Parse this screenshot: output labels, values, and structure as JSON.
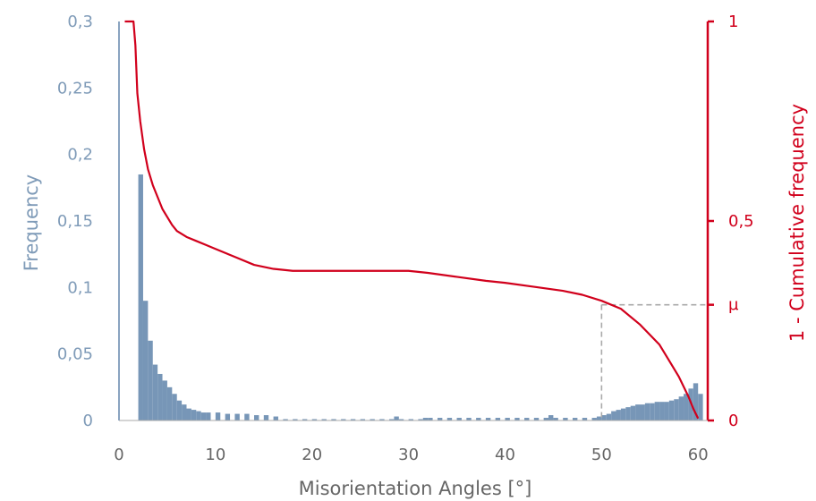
{
  "chart_data": {
    "type": "bar+line",
    "xlabel": "Misorientation Angles [°]",
    "ylabel_left": "Frequency",
    "ylabel_right": "1 - Cumulative frequency",
    "xlim": [
      0,
      61
    ],
    "ylim_left": [
      0,
      0.3
    ],
    "ylim_right": [
      0,
      1
    ],
    "x_ticks": [
      0,
      10,
      20,
      30,
      40,
      50,
      60
    ],
    "x_tick_labels": [
      "0",
      "10",
      "20",
      "30",
      "40",
      "50",
      "60"
    ],
    "y_left_ticks": [
      0,
      0.05,
      0.1,
      0.15,
      0.2,
      0.25,
      0.3
    ],
    "y_left_tick_labels": [
      "0",
      "0,05",
      "0,1",
      "0,15",
      "0,2",
      "0,25",
      "0,3"
    ],
    "y_right_ticks": [
      0,
      0.5,
      1
    ],
    "y_right_tick_labels": [
      "0",
      "0,5",
      "1"
    ],
    "mu_label": "μ",
    "mu_value": 0.29,
    "mu_x": 50,
    "colors": {
      "bars": "#7796b7",
      "line": "#d1001c",
      "left_axis": "#8aa4c0",
      "right_axis": "#d1001c",
      "guide": "#aaaaaa"
    },
    "histogram": {
      "bin_width": 0.5,
      "x_start": [
        2,
        2.5,
        3,
        3.5,
        4,
        4.5,
        5,
        5.5,
        6,
        6.5,
        7,
        7.5,
        8,
        8.5,
        9,
        10,
        11,
        12,
        13,
        14,
        15,
        16,
        17,
        18,
        19,
        20,
        21,
        22,
        23,
        24,
        25,
        26,
        27,
        28,
        28.5,
        29,
        30,
        31,
        31.5,
        32,
        33,
        34,
        35,
        36,
        37,
        38,
        39,
        40,
        41,
        42,
        43,
        44,
        44.5,
        45,
        46,
        47,
        48,
        49,
        49.5,
        50,
        50.5,
        51,
        51.5,
        52,
        52.5,
        53,
        53.5,
        54,
        54.5,
        55,
        55.5,
        56,
        56.5,
        57,
        57.5,
        58,
        58.5,
        59,
        59.5,
        60
      ],
      "values": [
        0.185,
        0.09,
        0.06,
        0.042,
        0.035,
        0.03,
        0.025,
        0.02,
        0.015,
        0.012,
        0.009,
        0.008,
        0.007,
        0.006,
        0.006,
        0.006,
        0.005,
        0.005,
        0.005,
        0.004,
        0.004,
        0.003,
        0.001,
        0.001,
        0.001,
        0.001,
        0.001,
        0.001,
        0.001,
        0.001,
        0.001,
        0.001,
        0.001,
        0.001,
        0.003,
        0.001,
        0.001,
        0.001,
        0.002,
        0.002,
        0.002,
        0.002,
        0.002,
        0.002,
        0.002,
        0.002,
        0.002,
        0.002,
        0.002,
        0.002,
        0.002,
        0.002,
        0.004,
        0.002,
        0.002,
        0.002,
        0.002,
        0.002,
        0.003,
        0.004,
        0.005,
        0.007,
        0.008,
        0.009,
        0.01,
        0.011,
        0.012,
        0.012,
        0.013,
        0.013,
        0.014,
        0.014,
        0.014,
        0.015,
        0.016,
        0.018,
        0.02,
        0.024,
        0.028,
        0.02
      ]
    },
    "cumulative_line": {
      "x": [
        0.6,
        1.5,
        1.7,
        1.9,
        2.2,
        2.6,
        3,
        3.5,
        4,
        4.5,
        5,
        5.5,
        6,
        7,
        8,
        9,
        10,
        12,
        14,
        16,
        18,
        20,
        25,
        30,
        32,
        35,
        38,
        40,
        43,
        46,
        48,
        50,
        52,
        54,
        56,
        57,
        58,
        59,
        59.5,
        60
      ],
      "y": [
        1,
        1,
        0.94,
        0.82,
        0.75,
        0.68,
        0.63,
        0.59,
        0.56,
        0.53,
        0.51,
        0.49,
        0.475,
        0.46,
        0.45,
        0.44,
        0.43,
        0.41,
        0.39,
        0.38,
        0.375,
        0.375,
        0.375,
        0.375,
        0.37,
        0.36,
        0.35,
        0.345,
        0.335,
        0.325,
        0.315,
        0.3,
        0.28,
        0.24,
        0.19,
        0.15,
        0.11,
        0.06,
        0.03,
        0.005
      ]
    }
  }
}
